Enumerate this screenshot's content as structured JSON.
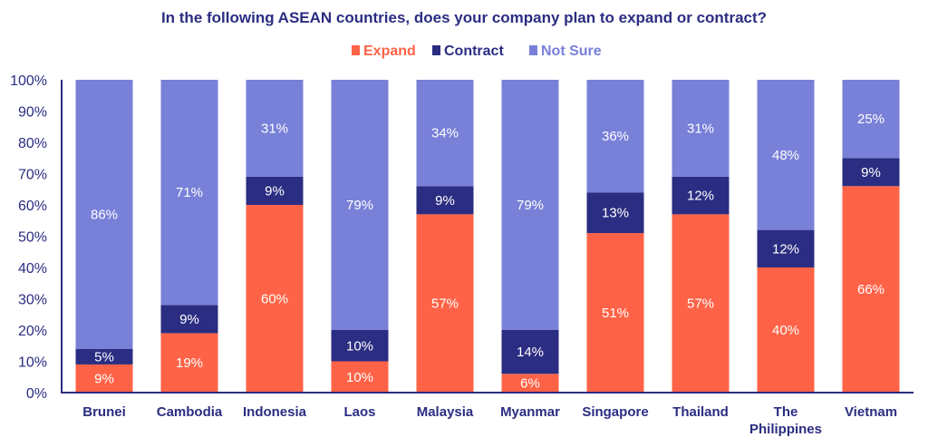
{
  "chart_data": {
    "type": "bar",
    "stacked": true,
    "title": "In the following ASEAN countries, does your company plan to expand or contract?",
    "xlabel": "",
    "ylabel": "",
    "ylim": [
      0,
      100
    ],
    "yticks": [
      "0%",
      "10%",
      "20%",
      "30%",
      "40%",
      "50%",
      "60%",
      "70%",
      "80%",
      "90%",
      "100%"
    ],
    "grid": false,
    "legend_position": "top-center",
    "categories": [
      "Brunei",
      "Cambodia",
      "Indonesia",
      "Laos",
      "Malaysia",
      "Myanmar",
      "Singapore",
      "Thailand",
      "The Philippines",
      "Vietnam"
    ],
    "category_lines": [
      [
        "Brunei"
      ],
      [
        "Cambodia"
      ],
      [
        "Indonesia"
      ],
      [
        "Laos"
      ],
      [
        "Malaysia"
      ],
      [
        "Myanmar"
      ],
      [
        "Singapore"
      ],
      [
        "Thailand"
      ],
      [
        "The",
        "Philippines"
      ],
      [
        "Vietnam"
      ]
    ],
    "series": [
      {
        "name": "Expand",
        "color": "#ff6347",
        "values": [
          9,
          19,
          60,
          10,
          57,
          6,
          51,
          57,
          40,
          66
        ]
      },
      {
        "name": "Contract",
        "color": "#2b2d82",
        "values": [
          5,
          9,
          9,
          10,
          9,
          14,
          13,
          12,
          12,
          9
        ]
      },
      {
        "name": "Not Sure",
        "color": "#7880d8",
        "values": [
          86,
          71,
          31,
          79,
          34,
          79,
          36,
          31,
          48,
          25
        ]
      }
    ]
  }
}
